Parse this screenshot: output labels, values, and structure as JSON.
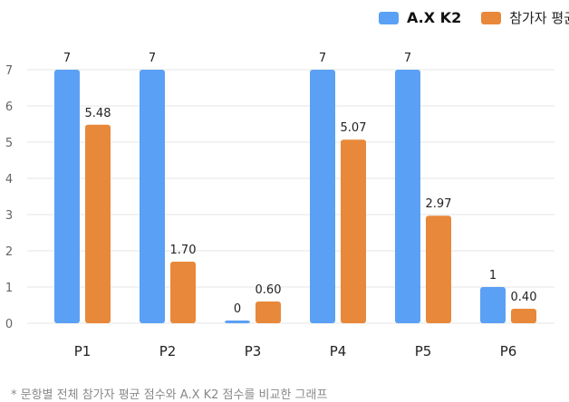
{
  "legend": {
    "series1": "A.X K2",
    "series2": "참가자 평균"
  },
  "colors": {
    "series1": "#5AA0F5",
    "series2": "#E8883A",
    "grid": "#E6E6E6",
    "axis_text": "#666666"
  },
  "footnote": "* 문항별 전체 참가자 평균 점수와 A.X K2 점수를 비교한 그래프",
  "chart_data": {
    "type": "bar",
    "categories": [
      "P1",
      "P2",
      "P3",
      "P4",
      "P5",
      "P6"
    ],
    "series": [
      {
        "name": "A.X K2",
        "values": [
          7,
          7,
          0,
          7,
          7,
          1
        ],
        "labels": [
          "7",
          "7",
          "0",
          "7",
          "7",
          "1"
        ]
      },
      {
        "name": "참가자 평균",
        "values": [
          5.48,
          1.7,
          0.6,
          5.07,
          2.97,
          0.4
        ],
        "labels": [
          "5.48",
          "1.70",
          "0.60",
          "5.07",
          "2.97",
          "0.40"
        ]
      }
    ],
    "yticks": [
      0,
      1,
      2,
      3,
      4,
      5,
      6,
      7
    ],
    "ylim": [
      0,
      7
    ],
    "grid": true,
    "legend_position": "top-right"
  }
}
